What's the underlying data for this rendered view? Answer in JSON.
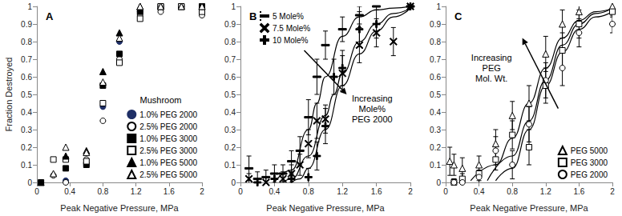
{
  "chart_data": [
    {
      "type": "scatter",
      "title": "A",
      "x_label": "Peak Negative Pressure, MPa",
      "y_label": "Fraction Destroyed",
      "xlim": [
        0,
        2
      ],
      "ylim": [
        0,
        1
      ],
      "xticks": [
        0,
        0.4,
        0.8,
        1.2,
        1.6,
        2
      ],
      "yticks": [
        0,
        0.1,
        0.2,
        0.3,
        0.4,
        0.5,
        0.6,
        0.7,
        0.8,
        0.9,
        1
      ],
      "grid": false,
      "legend": "lower right",
      "annotations": [
        "Mushroom"
      ],
      "series": [
        {
          "name": "1.0% PEG 2000",
          "color": "#1f2f66",
          "marker": "circle",
          "x": [
            0.05,
            0.35,
            0.6,
            0.8,
            1.0,
            1.25,
            1.5,
            1.75,
            2.0
          ],
          "values": [
            0,
            0.01,
            0.1,
            0.43,
            0.8,
            0.97,
            1,
            1,
            1
          ]
        },
        {
          "name": "2.5% PEG 2000",
          "color": "#000000",
          "marker": "open_circle",
          "x": [
            0.2,
            0.35,
            0.6,
            0.8,
            1.0,
            1.25,
            1.5,
            1.75,
            2.0
          ],
          "values": [
            0.04,
            0,
            0.13,
            0.35,
            0.7,
            0.95,
            0.97,
            1,
            0.95
          ]
        },
        {
          "name": "1.0% PEG 3000",
          "color": "#000000",
          "marker": "square",
          "x": [
            0.05,
            0.35,
            0.6,
            0.8,
            1.0,
            1.25,
            1.5,
            1.75,
            2.0
          ],
          "values": [
            0,
            0.08,
            0.1,
            0.55,
            0.73,
            0.97,
            1,
            1,
            1
          ]
        },
        {
          "name": "2.5% PEG 3000",
          "color": "#000000",
          "marker": "open_square",
          "x": [
            0.2,
            0.35,
            0.6,
            0.8,
            1.0,
            1.25,
            1.5,
            1.75,
            2.0
          ],
          "values": [
            0.13,
            0.13,
            0.12,
            0.45,
            0.68,
            0.93,
            1,
            1,
            0.97
          ]
        },
        {
          "name": "1.0% PEG 5000",
          "color": "#000000",
          "marker": "triangle",
          "x": [
            0.05,
            0.35,
            0.6,
            0.8,
            1.0,
            1.25,
            1.5,
            1.75,
            2.0
          ],
          "values": [
            0,
            0.15,
            0.18,
            0.63,
            0.85,
            1,
            1,
            1,
            1
          ]
        },
        {
          "name": "2.5% PEG 5000",
          "color": "#000000",
          "marker": "open_triangle",
          "x": [
            0.2,
            0.35,
            0.6,
            0.8,
            1.0,
            1.25,
            1.5,
            1.75,
            2.0
          ],
          "values": [
            0.05,
            0.2,
            0.17,
            0.57,
            0.82,
            1,
            1,
            1,
            1
          ]
        }
      ]
    },
    {
      "type": "scatter",
      "title": "B",
      "x_label": "Peak Negative Pressure, MPa",
      "xlim": [
        0,
        2
      ],
      "ylim": [
        0,
        1
      ],
      "xticks": [
        0,
        0.4,
        0.8,
        1.2,
        1.6,
        2
      ],
      "yticks": [
        0,
        0.1,
        0.2,
        0.3,
        0.4,
        0.5,
        0.6,
        0.7,
        0.8,
        0.9,
        1
      ],
      "grid": false,
      "legend": "upper left",
      "annotations": [
        "Increasing\nMole%\nPEG 2000"
      ],
      "series": [
        {
          "name": "5 Mole%",
          "color": "#000000",
          "marker": "dash",
          "x": [
            0.1,
            0.2,
            0.3,
            0.4,
            0.5,
            0.6,
            0.7,
            0.8,
            0.9,
            1.0,
            1.2,
            1.4,
            1.6,
            2.0
          ],
          "values": [
            0.08,
            0.02,
            0.03,
            0.05,
            0.05,
            0.12,
            0.18,
            0.37,
            0.6,
            0.78,
            0.87,
            0.95,
            1,
            1
          ],
          "errors": [
            0.07,
            0.04,
            0.04,
            0.05,
            0.05,
            0.06,
            0.08,
            0.1,
            0.1,
            0.08,
            0.07,
            0.05,
            0.02,
            0.01
          ],
          "curve": {
            "x": [
              0.4,
              0.6,
              0.8,
              0.9,
              1.0,
              1.2,
              1.4,
              1.6,
              1.8,
              2.0
            ],
            "values": [
              0,
              0.07,
              0.3,
              0.45,
              0.6,
              0.83,
              0.94,
              0.98,
              0.99,
              1
            ]
          }
        },
        {
          "name": "7.5 Mole%",
          "color": "#000000",
          "marker": "x",
          "x": [
            0.1,
            0.3,
            0.5,
            0.6,
            0.7,
            0.8,
            0.9,
            1.0,
            1.2,
            1.4,
            1.6,
            1.8,
            2.0
          ],
          "values": [
            0.02,
            0,
            0.02,
            0.05,
            0.1,
            0.22,
            0.35,
            0.36,
            0.62,
            0.78,
            0.85,
            0.8,
            1
          ],
          "errors": [
            0.03,
            0.03,
            0.04,
            0.05,
            0.06,
            0.08,
            0.1,
            0.08,
            0.1,
            0.1,
            0.08,
            0.08,
            0.02
          ],
          "curve": {
            "x": [
              0.5,
              0.6,
              0.8,
              1.0,
              1.1,
              1.2,
              1.4,
              1.6,
              1.8,
              2.0
            ],
            "values": [
              0,
              0.02,
              0.15,
              0.38,
              0.5,
              0.62,
              0.8,
              0.9,
              0.96,
              0.99
            ]
          }
        },
        {
          "name": "10 Mole%",
          "color": "#000000",
          "marker": "plus",
          "x": [
            0.2,
            0.4,
            0.6,
            0.8,
            0.9,
            1.0,
            1.1,
            1.2,
            1.4,
            1.6,
            2.0
          ],
          "values": [
            0,
            0.02,
            0.02,
            0.03,
            0.15,
            0.32,
            0.6,
            0.65,
            0.87,
            0.9,
            1
          ],
          "errors": [
            0.02,
            0.03,
            0.03,
            0.05,
            0.08,
            0.1,
            0.1,
            0.1,
            0.1,
            0.08,
            0.02
          ],
          "curve": {
            "x": [
              0.6,
              0.7,
              0.8,
              1.0,
              1.2,
              1.4,
              1.6,
              1.8,
              2.0
            ],
            "values": [
              0,
              0.02,
              0.08,
              0.3,
              0.55,
              0.73,
              0.86,
              0.94,
              0.99
            ]
          }
        }
      ]
    },
    {
      "type": "scatter",
      "title": "C",
      "x_label": "Peak Negative Pressure, MPa",
      "xlim": [
        0,
        2
      ],
      "ylim": [
        0,
        1
      ],
      "xticks": [
        0,
        0.4,
        0.8,
        1.2,
        1.6,
        2
      ],
      "yticks": [
        0,
        0.1,
        0.2,
        0.3,
        0.4,
        0.5,
        0.6,
        0.7,
        0.8,
        0.9,
        1
      ],
      "grid": false,
      "legend": "lower right",
      "annotations": [
        "Increasing\nPEG\nMol. Wt."
      ],
      "series": [
        {
          "name": "PEG 5000",
          "color": "#000000",
          "marker": "open_triangle",
          "x": [
            0.05,
            0.1,
            0.2,
            0.4,
            0.6,
            0.8,
            1.0,
            1.2,
            1.4,
            1.6,
            2.0
          ],
          "values": [
            0.12,
            0.1,
            0.08,
            0.1,
            0.22,
            0.38,
            0.45,
            0.73,
            0.9,
            0.97,
            1
          ],
          "errors": [
            0.08,
            0.06,
            0.06,
            0.05,
            0.08,
            0.08,
            0.1,
            0.1,
            0.08,
            0.05,
            0.02
          ],
          "curve": {
            "x": [
              0.3,
              0.6,
              0.8,
              1.0,
              1.2,
              1.4,
              1.6,
              1.8,
              2.0
            ],
            "values": [
              0.01,
              0.1,
              0.25,
              0.45,
              0.65,
              0.82,
              0.92,
              0.97,
              0.99
            ]
          }
        },
        {
          "name": "PEG 3000",
          "color": "#000000",
          "marker": "open_square",
          "x": [
            0.1,
            0.2,
            0.4,
            0.6,
            0.8,
            1.0,
            1.2,
            1.4,
            1.6,
            2.0
          ],
          "values": [
            0,
            0.02,
            0.05,
            0.13,
            0.27,
            0.2,
            0.55,
            0.75,
            0.9,
            0.97
          ],
          "errors": [
            0.02,
            0.03,
            0.04,
            0.06,
            0.08,
            0.1,
            0.1,
            0.1,
            0.08,
            0.03
          ],
          "curve": {
            "x": [
              0.5,
              0.8,
              1.0,
              1.2,
              1.4,
              1.6,
              1.8,
              2.0
            ],
            "values": [
              0.01,
              0.15,
              0.35,
              0.58,
              0.78,
              0.9,
              0.96,
              0.99
            ]
          }
        },
        {
          "name": "PEG 2000",
          "color": "#000000",
          "marker": "open_circle",
          "x": [
            0.1,
            0.2,
            0.4,
            0.6,
            0.8,
            1.0,
            1.2,
            1.4,
            1.6,
            2.0
          ],
          "values": [
            0,
            0,
            0.03,
            0.18,
            0.1,
            0.33,
            0.58,
            0.65,
            0.85,
            0.9
          ],
          "errors": [
            0.02,
            0.02,
            0.04,
            0.08,
            0.08,
            0.1,
            0.1,
            0.1,
            0.08,
            0.05
          ],
          "curve": {
            "x": [
              0.6,
              0.8,
              1.0,
              1.2,
              1.4,
              1.6,
              1.8,
              2.0
            ],
            "values": [
              0.01,
              0.08,
              0.3,
              0.55,
              0.74,
              0.87,
              0.94,
              0.97
            ]
          }
        }
      ]
    }
  ]
}
